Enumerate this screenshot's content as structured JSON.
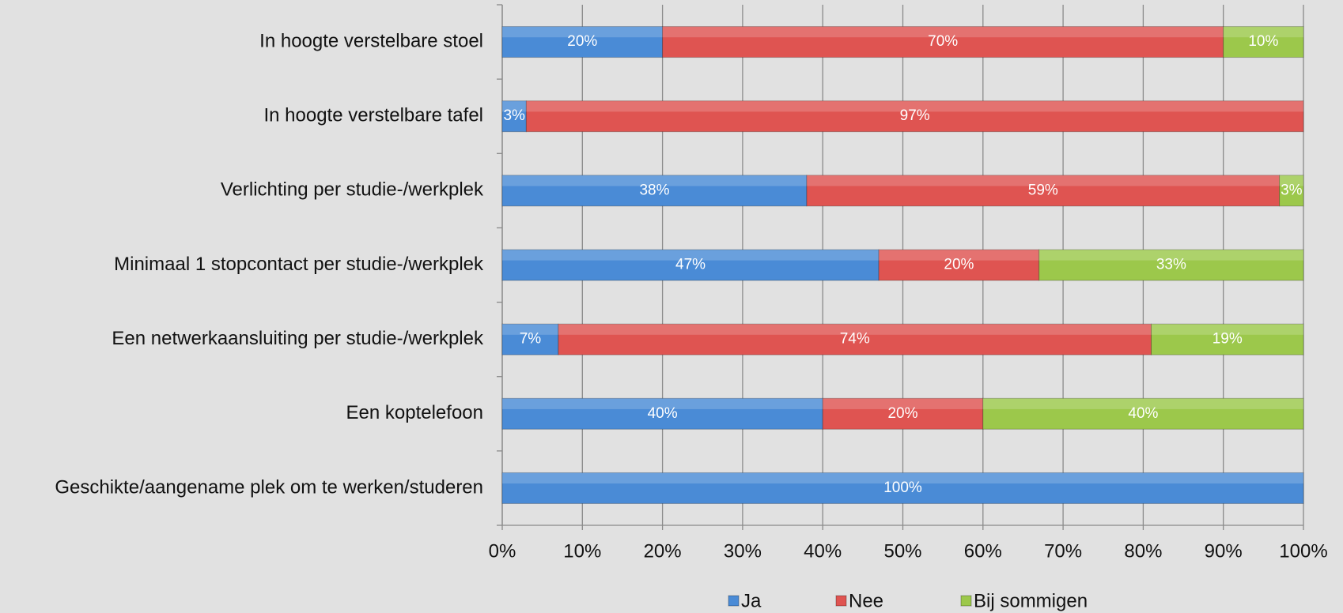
{
  "chart_data": {
    "type": "stacked-bar",
    "orientation": "horizontal",
    "categories": [
      "In hoogte verstelbare stoel",
      "In hoogte verstelbare tafel",
      "Verlichting per studie-/werkplek",
      "Minimaal 1 stopcontact per studie-/werkplek",
      "Een netwerkaansluiting per studie-/werkplek",
      "Een koptelefoon",
      "Geschikte/aangename plek om te werken/studeren"
    ],
    "series": [
      {
        "name": "Ja",
        "color": "#4a8bd6",
        "values": [
          20,
          3,
          38,
          47,
          7,
          40,
          100
        ],
        "value_labels": [
          "20%",
          "3%",
          "38%",
          "47%",
          "7%",
          "40%",
          "100%"
        ]
      },
      {
        "name": "Nee",
        "color": "#df5451",
        "values": [
          70,
          97,
          59,
          20,
          74,
          20,
          null
        ],
        "value_labels": [
          "70%",
          "97%",
          "59%",
          "20%",
          "74%",
          "20%",
          null
        ]
      },
      {
        "name": "Bij sommigen",
        "color": "#9cc84b",
        "values": [
          10,
          null,
          3,
          33,
          19,
          40,
          null
        ],
        "value_labels": [
          "10%",
          null,
          "3%",
          "33%",
          "19%",
          "40%",
          null
        ]
      }
    ],
    "xlim": [
      0,
      100
    ],
    "xticks": [
      {
        "value": 0,
        "label": "0%"
      },
      {
        "value": 10,
        "label": "10%"
      },
      {
        "value": 20,
        "label": "20%"
      },
      {
        "value": 30,
        "label": "30%"
      },
      {
        "value": 40,
        "label": "40%"
      },
      {
        "value": 50,
        "label": "50%"
      },
      {
        "value": 60,
        "label": "60%"
      },
      {
        "value": 70,
        "label": "70%"
      },
      {
        "value": 80,
        "label": "80%"
      },
      {
        "value": 90,
        "label": "90%"
      },
      {
        "value": 100,
        "label": "100%"
      }
    ],
    "grid": true,
    "legend": "bottom"
  }
}
